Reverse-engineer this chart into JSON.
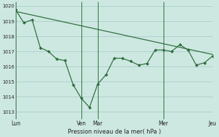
{
  "background_color": "#cce8e0",
  "grid_color": "#aacccc",
  "line_color": "#2d6b3c",
  "marker_color": "#2d6b3c",
  "xlabel": "Pression niveau de la mer( hPa )",
  "ylim": [
    1012.5,
    1020.25
  ],
  "yticks": [
    1013,
    1014,
    1015,
    1016,
    1017,
    1018,
    1019,
    1020
  ],
  "day_labels": [
    "Lun",
    "Ven",
    "Mar",
    "Mer",
    "Jeu"
  ],
  "day_positions": [
    0,
    8,
    10,
    18,
    24
  ],
  "xlim": [
    0,
    24
  ],
  "series1_x": [
    0,
    1,
    2,
    3,
    4,
    5,
    6,
    7,
    8,
    9,
    10,
    11,
    12,
    13,
    14,
    15,
    16,
    17,
    18,
    19,
    20,
    21,
    22,
    23,
    24
  ],
  "series1_y": [
    1019.75,
    1018.9,
    1019.1,
    1017.25,
    1017.0,
    1016.5,
    1016.4,
    1014.8,
    1013.9,
    1013.3,
    1014.85,
    1015.45,
    1016.55,
    1016.55,
    1016.35,
    1016.1,
    1016.2,
    1017.1,
    1017.1,
    1017.0,
    1017.45,
    1017.1,
    1016.1,
    1016.25,
    1016.7
  ],
  "series2_x": [
    0,
    24
  ],
  "series2_y": [
    1019.65,
    1016.8
  ],
  "vline_positions": [
    0,
    8,
    10,
    18,
    24
  ]
}
